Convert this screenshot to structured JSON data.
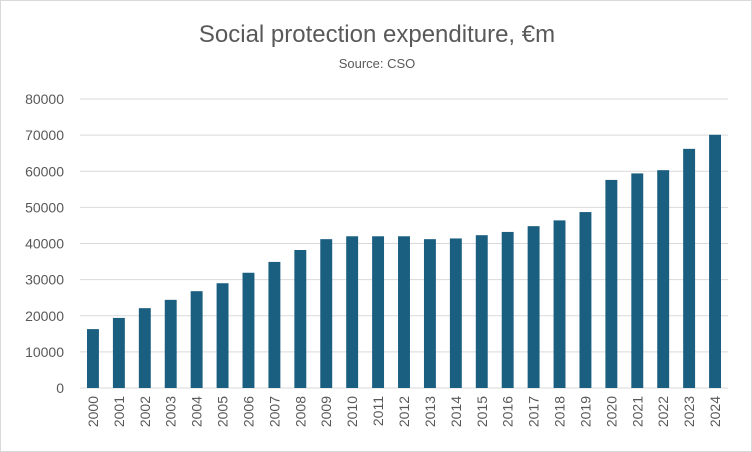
{
  "chart_data": {
    "type": "bar",
    "title": "Social protection expenditure, €m",
    "subtitle": "Source: CSO",
    "categories": [
      "2000",
      "2001",
      "2002",
      "2003",
      "2004",
      "2005",
      "2006",
      "2007",
      "2008",
      "2009",
      "2010",
      "2011",
      "2012",
      "2013",
      "2014",
      "2015",
      "2016",
      "2017",
      "2018",
      "2019",
      "2020",
      "2021",
      "2022",
      "2023",
      "2024"
    ],
    "values": [
      16300,
      19400,
      22100,
      24400,
      26800,
      29000,
      31900,
      34900,
      38200,
      41200,
      42000,
      42000,
      42000,
      41200,
      41400,
      42300,
      43200,
      44800,
      46400,
      48700,
      57600,
      59400,
      60300,
      66200,
      70100
    ],
    "ylim": [
      0,
      80000
    ],
    "yticks": [
      "0",
      "10000",
      "20000",
      "30000",
      "40000",
      "50000",
      "60000",
      "70000",
      "80000"
    ],
    "xlabel": "",
    "ylabel": "",
    "grid": true,
    "legend": "none",
    "bar_color": "#1a5e80",
    "grid_color": "#d9d9d9",
    "text_color": "#595959"
  }
}
